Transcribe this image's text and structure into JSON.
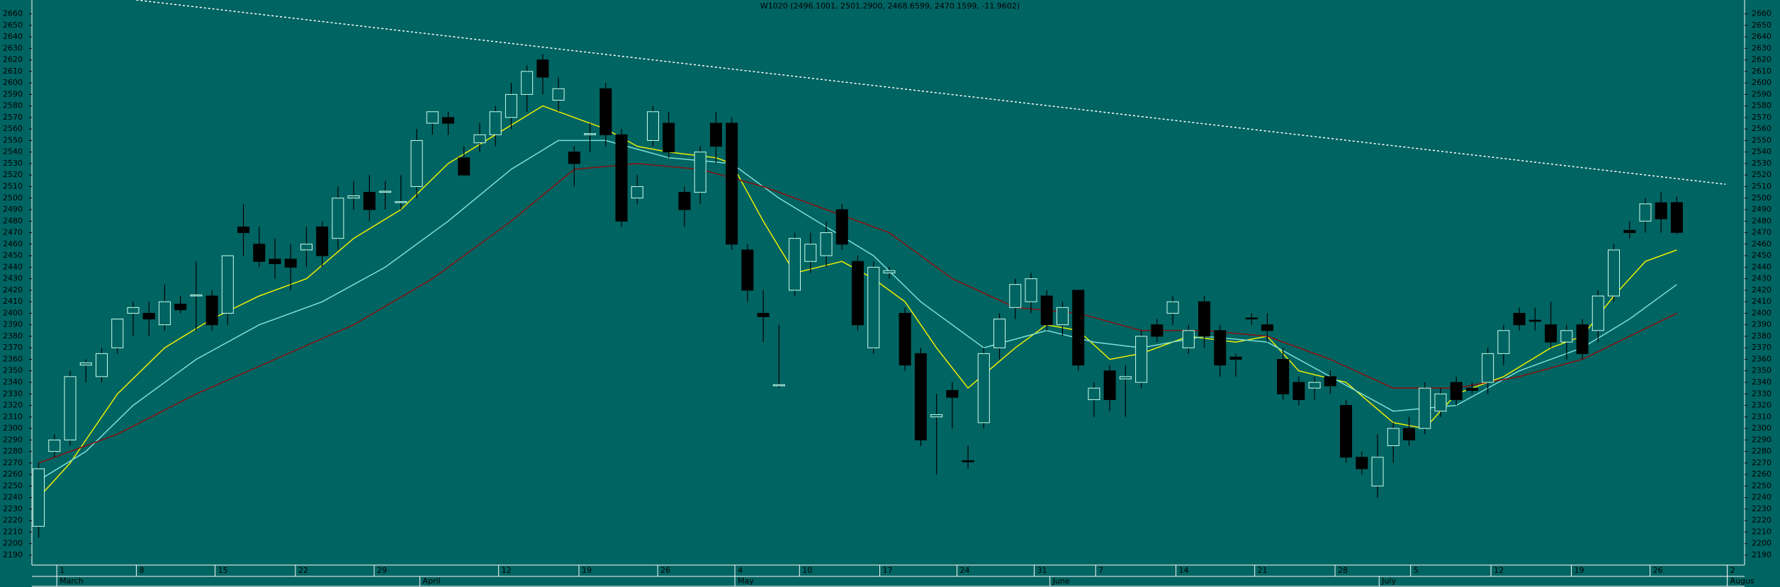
{
  "chart_data": {
    "type": "candlestick",
    "title": "W1020 (2496.1001, 2501.2900, 2468.6599, 2470.1599, -11.9602)",
    "x": [
      0,
      1,
      2,
      3,
      4,
      5,
      6,
      7,
      8,
      9,
      10,
      11,
      12,
      13,
      14,
      15,
      16,
      17,
      18,
      19,
      20,
      21,
      22,
      23,
      24,
      25,
      26,
      27,
      28,
      29,
      30,
      31,
      32,
      33,
      34,
      35,
      36,
      37,
      38,
      39,
      40,
      41,
      42,
      43,
      44,
      45,
      46,
      47,
      48,
      49,
      50,
      51,
      52,
      53,
      54,
      55,
      56,
      57,
      58,
      59,
      60,
      61,
      62,
      63,
      64,
      65,
      66,
      67,
      68,
      69,
      70,
      71,
      72,
      73,
      74,
      75,
      76,
      77,
      78,
      79,
      80,
      81,
      82,
      83,
      84,
      85,
      86,
      87,
      88,
      89,
      90,
      91,
      92,
      93,
      94,
      95,
      96,
      97,
      98,
      99,
      100,
      101,
      102,
      103,
      104
    ],
    "open": [
      2215,
      2280,
      2290,
      2355,
      2345,
      2370,
      2400,
      2400,
      2390,
      2408,
      2415,
      2415,
      2400,
      2475,
      2460,
      2447,
      2447,
      2455,
      2475,
      2465,
      2500,
      2505,
      2505,
      2496,
      2510,
      2565,
      2570,
      2535,
      2548,
      2555,
      2570,
      2590,
      2620,
      2585,
      2540,
      2555,
      2595,
      2555,
      2500,
      2550,
      2565,
      2505,
      2505,
      2565,
      2565,
      2455,
      2400,
      2337,
      2420,
      2445,
      2450,
      2490,
      2445,
      2370,
      2435,
      2400,
      2365,
      2310,
      2333,
      2272,
      2305,
      2370,
      2405,
      2410,
      2415,
      2390,
      2420,
      2325,
      2350,
      2343,
      2340,
      2390,
      2400,
      2370,
      2410,
      2385,
      2362,
      2396,
      2390,
      2360,
      2340,
      2335,
      2345,
      2320,
      2275,
      2250,
      2285,
      2300,
      2300,
      2315,
      2340,
      2335,
      2340,
      2365,
      2400,
      2394,
      2390,
      2375,
      2390,
      2385,
      2415,
      2472,
      2480,
      2496,
      2496.1001
    ],
    "high": [
      2270,
      2295,
      2350,
      2360,
      2370,
      2395,
      2410,
      2410,
      2425,
      2415,
      2445,
      2420,
      2450,
      2495,
      2475,
      2465,
      2460,
      2475,
      2480,
      2510,
      2515,
      2520,
      2515,
      2520,
      2560,
      2575,
      2575,
      2545,
      2565,
      2580,
      2600,
      2615,
      2625,
      2605,
      2545,
      2565,
      2600,
      2560,
      2520,
      2580,
      2575,
      2510,
      2545,
      2575,
      2570,
      2460,
      2420,
      2390,
      2470,
      2470,
      2480,
      2495,
      2450,
      2445,
      2440,
      2405,
      2370,
      2330,
      2340,
      2285,
      2370,
      2400,
      2430,
      2435,
      2420,
      2410,
      2420,
      2340,
      2355,
      2355,
      2385,
      2395,
      2415,
      2390,
      2415,
      2390,
      2365,
      2400,
      2400,
      2370,
      2345,
      2345,
      2350,
      2325,
      2280,
      2295,
      2305,
      2310,
      2340,
      2335,
      2345,
      2340,
      2370,
      2390,
      2405,
      2405,
      2410,
      2390,
      2395,
      2420,
      2460,
      2480,
      2500,
      2505,
      2501.29
    ],
    "low": [
      2205,
      2275,
      2285,
      2340,
      2340,
      2365,
      2380,
      2380,
      2385,
      2400,
      2385,
      2385,
      2390,
      2450,
      2440,
      2430,
      2420,
      2440,
      2440,
      2455,
      2490,
      2480,
      2490,
      2490,
      2500,
      2555,
      2555,
      2520,
      2540,
      2545,
      2560,
      2575,
      2590,
      2575,
      2510,
      2540,
      2545,
      2475,
      2495,
      2545,
      2535,
      2475,
      2495,
      2530,
      2455,
      2410,
      2375,
      2335,
      2415,
      2435,
      2440,
      2455,
      2385,
      2365,
      2430,
      2350,
      2285,
      2260,
      2300,
      2265,
      2300,
      2360,
      2395,
      2400,
      2385,
      2380,
      2350,
      2310,
      2315,
      2310,
      2335,
      2375,
      2390,
      2365,
      2370,
      2345,
      2345,
      2390,
      2375,
      2325,
      2320,
      2325,
      2330,
      2270,
      2260,
      2240,
      2270,
      2285,
      2295,
      2310,
      2320,
      2330,
      2330,
      2355,
      2385,
      2385,
      2370,
      2360,
      2360,
      2375,
      2410,
      2465,
      2470,
      2470,
      2468.6599
    ],
    "close": [
      2265,
      2290,
      2345,
      2357,
      2365,
      2395,
      2405,
      2395,
      2410,
      2403,
      2416,
      2390,
      2450,
      2470,
      2445,
      2443,
      2440,
      2460,
      2450,
      2500,
      2502,
      2490,
      2506,
      2497,
      2550,
      2575,
      2565,
      2520,
      2555,
      2575,
      2590,
      2610,
      2605,
      2595,
      2530,
      2556,
      2555,
      2480,
      2510,
      2575,
      2540,
      2490,
      2540,
      2545,
      2460,
      2420,
      2397,
      2338,
      2465,
      2460,
      2470,
      2460,
      2390,
      2440,
      2437,
      2355,
      2290,
      2312,
      2327,
      2271,
      2365,
      2395,
      2425,
      2430,
      2390,
      2405,
      2355,
      2335,
      2325,
      2345,
      2380,
      2380,
      2410,
      2385,
      2380,
      2355,
      2360,
      2395,
      2385,
      2330,
      2325,
      2340,
      2337,
      2275,
      2265,
      2275,
      2300,
      2290,
      2335,
      2330,
      2325,
      2333,
      2365,
      2385,
      2390,
      2393,
      2375,
      2385,
      2365,
      2415,
      2455,
      2470,
      2495,
      2482,
      2470.1599
    ],
    "lines": [
      {
        "color": "#f0f000",
        "x": [
          0,
          2,
          5,
          8,
          11,
          14,
          17,
          20,
          23,
          26,
          29,
          32,
          34,
          36,
          38,
          40,
          43,
          44,
          46,
          48,
          51,
          53,
          55,
          57,
          59,
          62,
          64,
          66,
          68,
          70,
          73,
          76,
          78,
          80,
          83,
          86,
          88,
          90,
          93,
          96,
          98,
          100,
          102,
          104
        ],
        "values": [
          2240,
          2270,
          2330,
          2370,
          2395,
          2415,
          2430,
          2465,
          2490,
          2530,
          2555,
          2580,
          2570,
          2560,
          2545,
          2540,
          2535,
          2530,
          2480,
          2435,
          2445,
          2430,
          2410,
          2370,
          2335,
          2370,
          2390,
          2385,
          2360,
          2365,
          2380,
          2375,
          2380,
          2350,
          2340,
          2305,
          2300,
          2330,
          2345,
          2370,
          2380,
          2415,
          2445,
          2455
        ]
      },
      {
        "color": "#7fe0d8",
        "x": [
          0,
          3,
          6,
          10,
          14,
          18,
          22,
          26,
          30,
          33,
          36,
          40,
          44,
          47,
          50,
          53,
          56,
          60,
          64,
          67,
          70,
          74,
          78,
          82,
          86,
          90,
          94,
          98,
          101,
          104
        ],
        "values": [
          2255,
          2280,
          2320,
          2360,
          2390,
          2410,
          2440,
          2480,
          2525,
          2550,
          2550,
          2535,
          2530,
          2500,
          2475,
          2450,
          2410,
          2370,
          2385,
          2375,
          2370,
          2380,
          2375,
          2345,
          2315,
          2320,
          2350,
          2370,
          2395,
          2425
        ]
      },
      {
        "color": "#8a1010",
        "x": [
          0,
          5,
          10,
          15,
          20,
          25,
          30,
          34,
          38,
          42,
          46,
          50,
          54,
          58,
          62,
          66,
          70,
          74,
          78,
          82,
          86,
          90,
          94,
          98,
          101,
          104
        ],
        "values": [
          2270,
          2295,
          2330,
          2360,
          2390,
          2430,
          2480,
          2525,
          2530,
          2525,
          2510,
          2490,
          2470,
          2430,
          2405,
          2400,
          2385,
          2385,
          2380,
          2360,
          2335,
          2335,
          2345,
          2360,
          2380,
          2400
        ]
      }
    ],
    "trendline": {
      "color": "#ffffff",
      "x": [
        6.2,
        107.1
      ],
      "values": [
        2672,
        2512
      ]
    },
    "ylim": [
      2182,
      2672
    ],
    "yticks": [
      2190,
      2200,
      2210,
      2220,
      2230,
      2240,
      2250,
      2260,
      2270,
      2280,
      2290,
      2300,
      2310,
      2320,
      2330,
      2340,
      2350,
      2360,
      2370,
      2380,
      2390,
      2400,
      2410,
      2420,
      2430,
      2440,
      2450,
      2460,
      2470,
      2480,
      2490,
      2500,
      2510,
      2520,
      2530,
      2540,
      2550,
      2560,
      2570,
      2580,
      2590,
      2600,
      2610,
      2620,
      2630,
      2640,
      2650,
      2660
    ],
    "xlim": [
      -0.43,
      108.3
    ],
    "xticks": [
      {
        "value": 1.15,
        "label": "1"
      },
      {
        "value": 6.2,
        "label": "8"
      },
      {
        "value": 11.2,
        "label": "15"
      },
      {
        "value": 16.3,
        "label": "22"
      },
      {
        "value": 21.3,
        "label": "29"
      },
      {
        "value": 29.2,
        "label": "12"
      },
      {
        "value": 34.3,
        "label": "19"
      },
      {
        "value": 39.3,
        "label": "26"
      },
      {
        "value": 44.2,
        "label": "4"
      },
      {
        "value": 48.3,
        "label": "10"
      },
      {
        "value": 53.4,
        "label": "17"
      },
      {
        "value": 58.3,
        "label": "24"
      },
      {
        "value": 63.2,
        "label": "31"
      },
      {
        "value": 67.1,
        "label": "7"
      },
      {
        "value": 72.2,
        "label": "14"
      },
      {
        "value": 77.2,
        "label": "21"
      },
      {
        "value": 82.3,
        "label": "28"
      },
      {
        "value": 87.1,
        "label": "5"
      },
      {
        "value": 92.2,
        "label": "12"
      },
      {
        "value": 97.3,
        "label": "19"
      },
      {
        "value": 102.3,
        "label": "26"
      },
      {
        "value": 107.2,
        "label": "2"
      }
    ],
    "months": [
      {
        "value": 1.15,
        "label": "March"
      },
      {
        "value": 24.2,
        "label": "April"
      },
      {
        "value": 44.2,
        "label": "May"
      },
      {
        "value": 64.2,
        "label": "June"
      },
      {
        "value": 85.1,
        "label": "July"
      },
      {
        "value": 107.2,
        "label": "Augus"
      }
    ]
  }
}
